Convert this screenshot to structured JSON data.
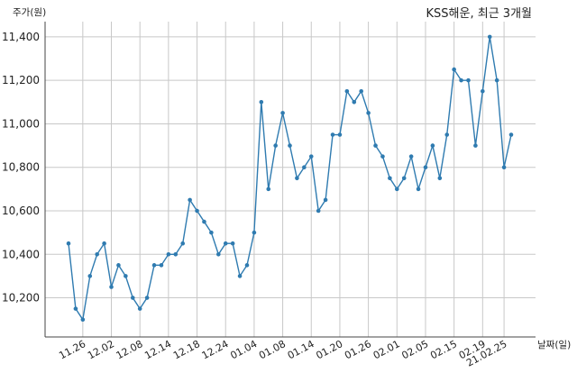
{
  "chart_data": {
    "type": "line",
    "title": "KSS해운, 최근 3개월",
    "ylabel": "주가(원)",
    "xlabel": "날짜(일)",
    "ylim": [
      10020,
      11470
    ],
    "yticks": [
      10200,
      10400,
      10600,
      10800,
      11000,
      11200,
      11400
    ],
    "ytick_labels": [
      "10,200",
      "10,400",
      "10,600",
      "10,800",
      "11,000",
      "11,200",
      "11,400"
    ],
    "xticks": [
      {
        "index": 2,
        "label": "11.26"
      },
      {
        "index": 6,
        "label": "12.02"
      },
      {
        "index": 10,
        "label": "12.08"
      },
      {
        "index": 14,
        "label": "12.14"
      },
      {
        "index": 18,
        "label": "12.18"
      },
      {
        "index": 22,
        "label": "12.24"
      },
      {
        "index": 26,
        "label": "01.04"
      },
      {
        "index": 30,
        "label": "01.08"
      },
      {
        "index": 34,
        "label": "01.14"
      },
      {
        "index": 38,
        "label": "01.20"
      },
      {
        "index": 42,
        "label": "01.26"
      },
      {
        "index": 46,
        "label": "02.01"
      },
      {
        "index": 50,
        "label": "02.05"
      },
      {
        "index": 54,
        "label": "02.15"
      },
      {
        "index": 58,
        "label": "02.19"
      },
      {
        "index": 61,
        "label": "21.02.25"
      }
    ],
    "grid": true,
    "color": "#2f7bb0",
    "series": [
      {
        "values": [
          10450,
          10150,
          10100,
          10300,
          10400,
          10450,
          10250,
          10350,
          10300,
          10200,
          10150,
          10200,
          10350,
          10350,
          10400,
          10400,
          10450,
          10650,
          10600,
          10550,
          10500,
          10400,
          10450,
          10450,
          10300,
          10350,
          10500,
          11100,
          10700,
          10900,
          11050,
          10900,
          10750,
          10800,
          10850,
          10600,
          10650,
          10950,
          10950,
          11150,
          11100,
          11150,
          11050,
          10900,
          10850,
          10750,
          10700,
          10750,
          10850,
          10700,
          10800,
          10900,
          10750,
          10950,
          11250,
          11200,
          11200,
          10900,
          11150,
          11400,
          11200,
          10800,
          10950
        ]
      }
    ]
  }
}
